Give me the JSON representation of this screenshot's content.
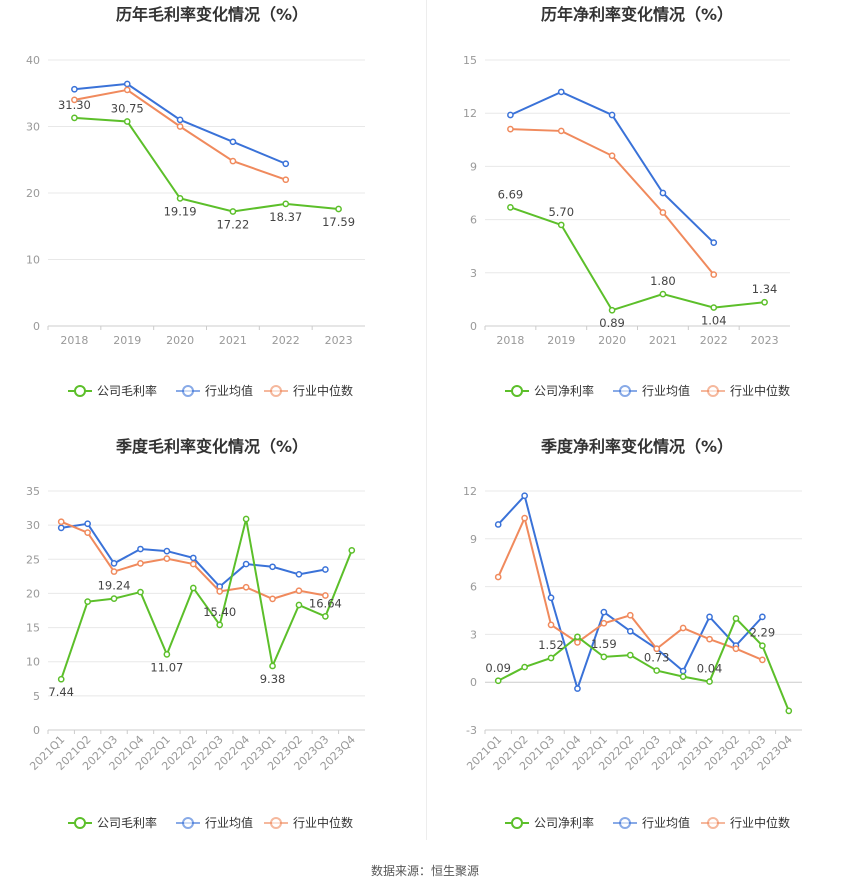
{
  "source": "数据来源：恒生聚源",
  "colors": {
    "company": "#5cbf2a",
    "industry_avg": "#3a72d8",
    "industry_median": "#f08a5d",
    "grid": "#e8e8e8",
    "axis_text": "#999999",
    "title": "#333333"
  },
  "chart_data": [
    {
      "type": "line",
      "title": "历年毛利率变化情况（%）",
      "categories": [
        "2018",
        "2019",
        "2020",
        "2021",
        "2022",
        "2023"
      ],
      "ylim": [
        0,
        40
      ],
      "yticks": [
        0,
        10,
        20,
        30,
        40
      ],
      "grid": true,
      "legend_position": "bottom",
      "series": [
        {
          "name": "公司毛利率",
          "color": "#5cbf2a",
          "values": [
            31.3,
            30.75,
            19.19,
            17.22,
            18.37,
            17.59
          ],
          "labels": [
            "31.30",
            "30.75",
            "19.19",
            "17.22",
            "18.37",
            "17.59"
          ]
        },
        {
          "name": "行业均值",
          "color": "#3a72d8",
          "values": [
            35.6,
            36.4,
            31.0,
            27.7,
            24.4,
            null
          ]
        },
        {
          "name": "行业中位数",
          "color": "#f08a5d",
          "values": [
            34.0,
            35.5,
            30.0,
            24.8,
            22.0,
            null
          ]
        }
      ]
    },
    {
      "type": "line",
      "title": "历年净利率变化情况（%）",
      "categories": [
        "2018",
        "2019",
        "2020",
        "2021",
        "2022",
        "2023"
      ],
      "ylim": [
        0,
        15
      ],
      "yticks": [
        0,
        3,
        6,
        9,
        12,
        15
      ],
      "grid": true,
      "legend_position": "bottom",
      "series": [
        {
          "name": "公司净利率",
          "color": "#5cbf2a",
          "values": [
            6.69,
            5.7,
            0.89,
            1.8,
            1.04,
            1.34
          ],
          "labels": [
            "6.69",
            "5.70",
            "0.89",
            "1.80",
            "1.04",
            "1.34"
          ]
        },
        {
          "name": "行业均值",
          "color": "#3a72d8",
          "values": [
            11.9,
            13.2,
            11.9,
            7.5,
            4.7,
            null
          ]
        },
        {
          "name": "行业中位数",
          "color": "#f08a5d",
          "values": [
            11.1,
            11.0,
            9.6,
            6.4,
            2.9,
            null
          ]
        }
      ]
    },
    {
      "type": "line",
      "title": "季度毛利率变化情况（%）",
      "categories": [
        "2021Q1",
        "2021Q2",
        "2021Q3",
        "2021Q4",
        "2022Q1",
        "2022Q2",
        "2022Q3",
        "2022Q4",
        "2023Q1",
        "2023Q2",
        "2023Q3",
        "2023Q4"
      ],
      "ylim": [
        0,
        35
      ],
      "yticks": [
        0,
        5,
        10,
        15,
        20,
        25,
        30,
        35
      ],
      "grid": true,
      "legend_position": "bottom",
      "series": [
        {
          "name": "公司毛利率",
          "color": "#5cbf2a",
          "values": [
            7.44,
            18.8,
            19.24,
            20.2,
            11.07,
            20.8,
            15.4,
            30.9,
            9.38,
            18.3,
            16.64,
            26.3
          ],
          "labels": [
            "7.44",
            "",
            "19.24",
            "",
            "11.07",
            "",
            "15.40",
            "",
            "9.38",
            "",
            "16.64",
            ""
          ]
        },
        {
          "name": "行业均值",
          "color": "#3a72d8",
          "values": [
            29.6,
            30.2,
            24.4,
            26.5,
            26.2,
            25.2,
            21.0,
            24.3,
            23.9,
            22.8,
            23.5,
            null
          ]
        },
        {
          "name": "行业中位数",
          "color": "#f08a5d",
          "values": [
            30.5,
            28.9,
            23.2,
            24.4,
            25.1,
            24.3,
            20.3,
            20.9,
            19.2,
            20.4,
            19.7,
            null
          ]
        }
      ]
    },
    {
      "type": "line",
      "title": "季度净利率变化情况（%）",
      "categories": [
        "2021Q1",
        "2021Q2",
        "2021Q3",
        "2021Q4",
        "2022Q1",
        "2022Q2",
        "2022Q3",
        "2022Q4",
        "2023Q1",
        "2023Q2",
        "2023Q3",
        "2023Q4"
      ],
      "ylim": [
        -3,
        12
      ],
      "yticks": [
        -3,
        0,
        3,
        6,
        9,
        12
      ],
      "grid": true,
      "legend_position": "bottom",
      "series": [
        {
          "name": "公司净利率",
          "color": "#5cbf2a",
          "values": [
            0.09,
            0.95,
            1.52,
            2.85,
            1.59,
            1.7,
            0.73,
            0.35,
            0.04,
            4.0,
            2.29,
            -1.8
          ],
          "labels": [
            "0.09",
            "",
            "1.52",
            "",
            "1.59",
            "",
            "0.73",
            "",
            "0.04",
            "",
            "2.29",
            ""
          ]
        },
        {
          "name": "行业均值",
          "color": "#3a72d8",
          "values": [
            9.9,
            11.7,
            5.3,
            -0.4,
            4.4,
            3.2,
            2.1,
            0.7,
            4.1,
            2.3,
            4.1,
            null
          ]
        },
        {
          "name": "行业中位数",
          "color": "#f08a5d",
          "values": [
            6.6,
            10.3,
            3.6,
            2.5,
            3.7,
            4.2,
            2.1,
            3.4,
            2.7,
            2.1,
            1.4,
            null
          ]
        }
      ]
    }
  ]
}
